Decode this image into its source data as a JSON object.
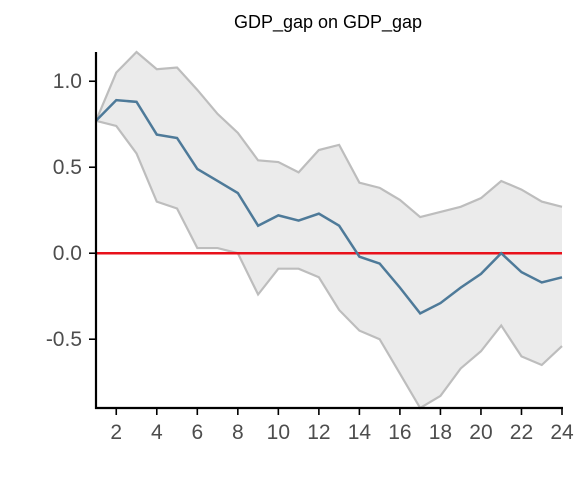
{
  "chart_data": {
    "type": "line",
    "title": "GDP_gap on GDP_gap",
    "xlabel": "",
    "ylabel": "",
    "xlim": [
      1,
      24
    ],
    "ylim": [
      -0.9,
      1.17
    ],
    "x_ticks": [
      2,
      4,
      6,
      8,
      10,
      12,
      14,
      16,
      18,
      20,
      22,
      24
    ],
    "x_tick_labels": [
      "2",
      "4",
      "6",
      "8",
      "10",
      "12",
      "14",
      "16",
      "18",
      "20",
      "22",
      "24"
    ],
    "y_ticks": [
      1.0,
      0.5,
      0.0,
      -0.5
    ],
    "y_tick_labels": [
      "1.0",
      "0.5",
      "0.0",
      "-0.5"
    ],
    "grid": false,
    "legend": "none",
    "x": [
      1,
      2,
      3,
      4,
      5,
      6,
      7,
      8,
      9,
      10,
      11,
      12,
      13,
      14,
      15,
      16,
      17,
      18,
      19,
      20,
      21,
      22,
      23,
      24
    ],
    "series": [
      {
        "role": "response",
        "color": "#4e7a99",
        "values": [
          0.77,
          0.89,
          0.88,
          0.69,
          0.67,
          0.49,
          0.42,
          0.35,
          0.16,
          0.22,
          0.19,
          0.23,
          0.16,
          -0.02,
          -0.06,
          -0.2,
          -0.35,
          -0.29,
          -0.2,
          -0.12,
          0.0,
          -0.11,
          -0.17,
          -0.14
        ]
      },
      {
        "role": "upper_bound",
        "color": "#bdbdbd",
        "values": [
          0.77,
          1.05,
          1.17,
          1.07,
          1.08,
          0.95,
          0.81,
          0.7,
          0.54,
          0.53,
          0.47,
          0.6,
          0.63,
          0.41,
          0.38,
          0.31,
          0.21,
          0.24,
          0.27,
          0.32,
          0.42,
          0.37,
          0.3,
          0.27
        ]
      },
      {
        "role": "lower_bound",
        "color": "#bdbdbd",
        "values": [
          0.77,
          0.74,
          0.58,
          0.3,
          0.26,
          0.03,
          0.03,
          0.0,
          -0.24,
          -0.09,
          -0.09,
          -0.14,
          -0.33,
          -0.45,
          -0.5,
          -0.7,
          -0.9,
          -0.83,
          -0.67,
          -0.57,
          -0.42,
          -0.6,
          -0.65,
          -0.54
        ]
      }
    ],
    "band_fill_color": "#ebebeb",
    "reference_line": {
      "y": 0.0,
      "color": "#e8111b"
    },
    "axis_color": "#000000",
    "tick_label_color": "#4d4d4d"
  }
}
